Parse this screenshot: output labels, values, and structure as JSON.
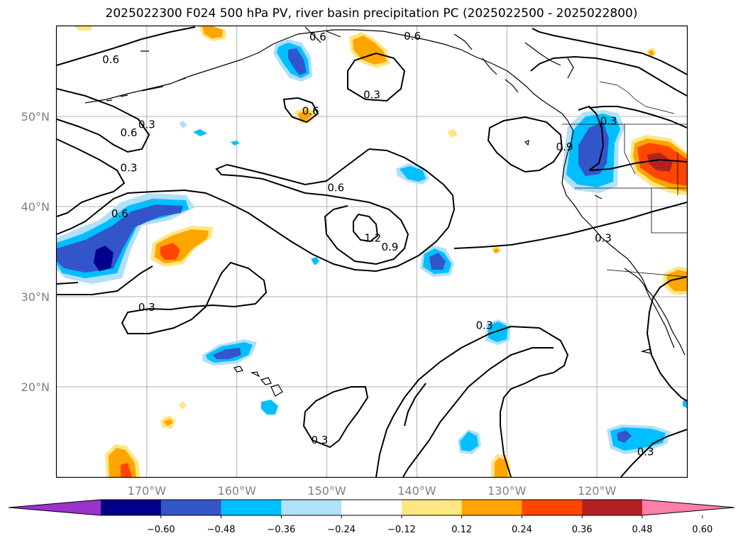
{
  "title": "2025022300 F024 500 hPa PV, river basin precipitation PC (2025022500 - 2025022800)",
  "map": {
    "lon_range": [
      -180,
      -110
    ],
    "lat_range": [
      10,
      60
    ],
    "lon_ticks": [
      {
        "value": -170,
        "label": "170°W"
      },
      {
        "value": -160,
        "label": "160°W"
      },
      {
        "value": -150,
        "label": "150°W"
      },
      {
        "value": -140,
        "label": "140°W"
      },
      {
        "value": -130,
        "label": "130°W"
      },
      {
        "value": -120,
        "label": "120°W"
      }
    ],
    "lat_ticks": [
      {
        "value": 50,
        "label": "50°N"
      },
      {
        "value": 40,
        "label": "40°N"
      },
      {
        "value": 30,
        "label": "30°N"
      },
      {
        "value": 20,
        "label": "20°N"
      }
    ],
    "grid": true,
    "contour_labels": [
      {
        "text": "0.6",
        "lon": -174,
        "lat": 56.3
      },
      {
        "text": "0.6",
        "lon": -151,
        "lat": 58.8
      },
      {
        "text": "0.6",
        "lon": -140.5,
        "lat": 58.9
      },
      {
        "text": "0.3",
        "lon": -145,
        "lat": 52.4
      },
      {
        "text": "0.6",
        "lon": -151.8,
        "lat": 50.6
      },
      {
        "text": "0.3",
        "lon": -170,
        "lat": 49.1
      },
      {
        "text": "0.6",
        "lon": -172,
        "lat": 48.2
      },
      {
        "text": "0.3",
        "lon": -172,
        "lat": 44.3
      },
      {
        "text": "0.6",
        "lon": -173,
        "lat": 39.2
      },
      {
        "text": "0.6",
        "lon": -149,
        "lat": 42.1
      },
      {
        "text": "1.2",
        "lon": -144.9,
        "lat": 36.5
      },
      {
        "text": "0.9",
        "lon": -143,
        "lat": 35.5
      },
      {
        "text": "0.9",
        "lon": -123.6,
        "lat": 46.6
      },
      {
        "text": "0.3",
        "lon": -118.7,
        "lat": 49.5
      },
      {
        "text": "0.3",
        "lon": -119.3,
        "lat": 36.5
      },
      {
        "text": "0.3",
        "lon": -170,
        "lat": 28.8
      },
      {
        "text": "0.3",
        "lon": -132.5,
        "lat": 26.8
      },
      {
        "text": "0.3",
        "lon": -150.8,
        "lat": 14.1
      },
      {
        "text": "0.3",
        "lon": -114.6,
        "lat": 12.8
      }
    ]
  },
  "colorbar": {
    "colors": [
      "#9933cc",
      "#00008b",
      "#3355cc",
      "#00bfff",
      "#b0e0fa",
      "#ffffff",
      "#ffe680",
      "#ffa500",
      "#ff4500",
      "#b22222",
      "#ff80a8"
    ],
    "labels": [
      "−0.60",
      "−0.48",
      "−0.36",
      "−0.24",
      "−0.12",
      "0.12",
      "0.24",
      "0.36",
      "0.48",
      "0.60"
    ]
  }
}
